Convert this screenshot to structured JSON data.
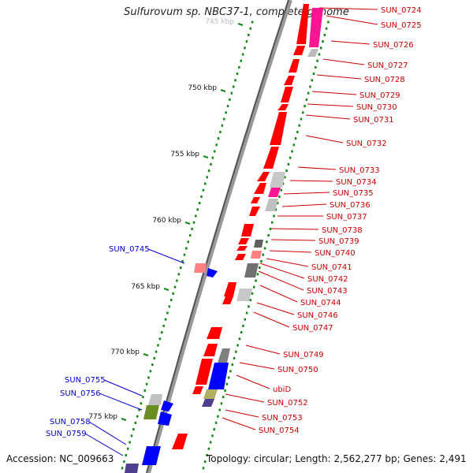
{
  "title": "Sulfurovum sp. NBC37-1, complete genome",
  "footer": {
    "accession": "Accession: NC_009663",
    "topology": "Topology: circular; Length: 2,562,277 bp; Genes: 2,491"
  },
  "ruler": [
    {
      "label": "745 kbp"
    },
    {
      "label": "750 kbp"
    },
    {
      "label": "755 kbp"
    },
    {
      "label": "760 kbp"
    },
    {
      "label": "765 kbp"
    },
    {
      "label": "770 kbp"
    },
    {
      "label": "775 kbp"
    }
  ],
  "gene_labels_forward": [
    "SUN_0724",
    "SUN_0725",
    "SUN_0726",
    "SUN_0727",
    "SUN_0728",
    "SUN_0729",
    "SUN_0730",
    "SUN_0731",
    "SUN_0732",
    "SUN_0733",
    "SUN_0734",
    "SUN_0735",
    "SUN_0736",
    "SUN_0737",
    "SUN_0738",
    "SUN_0739",
    "SUN_0740",
    "SUN_0741",
    "SUN_0742",
    "SUN_0743",
    "SUN_0744",
    "SUN_0746",
    "SUN_0747",
    "SUN_0749",
    "SUN_0750",
    "ubiD",
    "SUN_0752",
    "SUN_0753",
    "SUN_0754"
  ],
  "gene_labels_reverse": [
    "SUN_0745",
    "SUN_0755",
    "SUN_0756",
    "SUN_0758",
    "SUN_0759"
  ],
  "colors": {
    "forward_label": "#cc0000",
    "reverse_label": "#0000cc",
    "backbone": "#777777",
    "tick": "#118811",
    "cds_red": "#ff0000",
    "cds_blue": "#0000ff"
  }
}
